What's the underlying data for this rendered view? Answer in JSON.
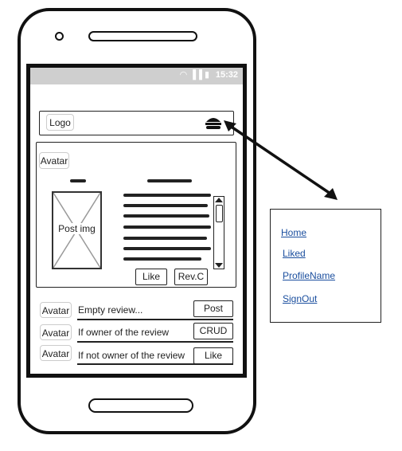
{
  "status_bar": {
    "time": "15:32",
    "icons": "wifi-signal-battery"
  },
  "header": {
    "logo_label": "Logo",
    "menu_icon": "hamburger-icon"
  },
  "post": {
    "avatar_label": "Avatar",
    "image_label": "Post img",
    "like_label": "Like",
    "reviews_label": "Rev.C"
  },
  "reviews": [
    {
      "avatar_label": "Avatar",
      "text": "Empty review...",
      "action_label": "Post"
    },
    {
      "avatar_label": "Avatar",
      "text": "If owner of the review",
      "action_label": "CRUD"
    },
    {
      "avatar_label": "Avatar",
      "text": "If not owner of the review",
      "action_label": "Like"
    }
  ],
  "menu": {
    "items": [
      {
        "label": "Home"
      },
      {
        "label": "Liked"
      },
      {
        "label": "ProfileName"
      },
      {
        "label": "SignOut"
      }
    ]
  }
}
